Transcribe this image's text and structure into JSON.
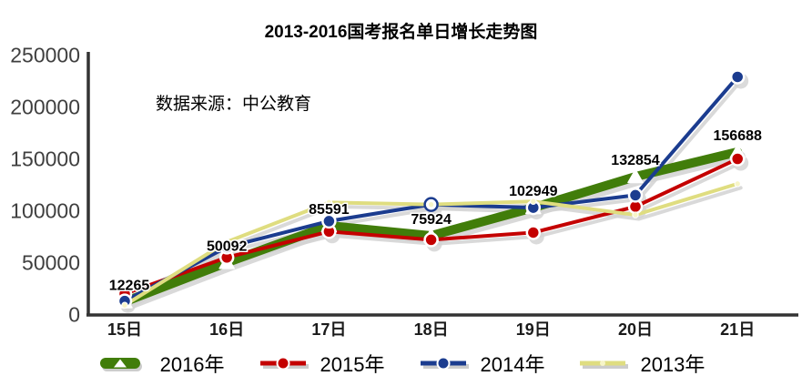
{
  "title": "2013-2016国考报名单日增长走势图",
  "source_note": "数据来源：中公教育",
  "chart_data": {
    "type": "line",
    "title": "2013-2016国考报名单日增长走势图",
    "categories": [
      "15日",
      "16日",
      "17日",
      "18日",
      "19日",
      "20日",
      "21日"
    ],
    "series": [
      {
        "name": "2016年",
        "color": "#417d0a",
        "marker": "triangle",
        "line_width": 10,
        "values": [
          12265,
          50092,
          85591,
          75924,
          102949,
          132854,
          156688
        ]
      },
      {
        "name": "2015年",
        "color": "#c40000",
        "marker": "circle",
        "line_width": 4,
        "values": [
          20000,
          55000,
          80000,
          72000,
          79000,
          104000,
          150000
        ]
      },
      {
        "name": "2014年",
        "color": "#1b3c8f",
        "marker": "circle",
        "line_width": 4,
        "open_marker_index": 3,
        "values": [
          13000,
          65000,
          90000,
          106000,
          103000,
          115000,
          229000
        ]
      },
      {
        "name": "2013年",
        "color": "#dfdd80",
        "marker": "dot",
        "line_width": 4,
        "values": [
          9000,
          70000,
          108000,
          106000,
          109000,
          96000,
          126000
        ]
      }
    ],
    "data_labels": [
      "12265",
      "50092",
      "85591",
      "75924",
      "102949",
      "132854",
      "156688"
    ],
    "data_labels_series": "2016年",
    "yticks": [
      "0",
      "50000",
      "100000",
      "150000",
      "200000",
      "250000"
    ],
    "ylim": [
      0,
      250000
    ],
    "grid": false,
    "shadow": true,
    "legend_position": "bottom",
    "axis_color": "#333333",
    "shadow_color": "#d2d2d2"
  }
}
